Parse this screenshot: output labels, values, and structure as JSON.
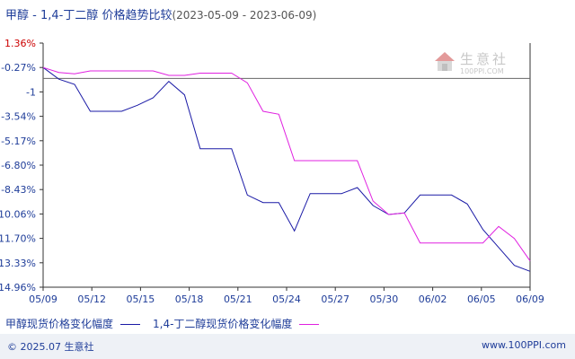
{
  "header": {
    "title": "甲醇 - 1,4-丁二醇 价格趋势比较",
    "date_range": "(2023-05-09 - 2023-06-09)"
  },
  "watermark": {
    "name": "生意社",
    "url": "100PPI.COM"
  },
  "footer": {
    "copyright": "© 2025.07 生意社",
    "site": "www.100PPI.com"
  },
  "chart_data": {
    "type": "line",
    "title": "甲醇 - 1,4-丁二醇 价格趋势比较",
    "subtitle": "(2023-05-09 - 2023-06-09)",
    "xlabel": "",
    "ylabel": "",
    "x_ticks": [
      "05/09",
      "05/12",
      "05/15",
      "05/18",
      "05/21",
      "05/24",
      "05/27",
      "05/30",
      "06/02",
      "06/05",
      "06/09"
    ],
    "y_ticks": [
      "1.36%",
      "-0.27%",
      "-1",
      "-3.54%",
      "-5.17%",
      "-6.80%",
      "-8.43%",
      "-10.06%",
      "-11.70%",
      "-13.33%",
      "-14.96%"
    ],
    "ylim": [
      -14.96,
      1.36
    ],
    "xlim": [
      0,
      31
    ],
    "reference_line": -1,
    "grid": false,
    "legend_position": "bottom",
    "series": [
      {
        "name": "甲醇现货价格变化幅度",
        "color": "#1a1aa6",
        "x": [
          0,
          1,
          2,
          3,
          4,
          5,
          6,
          7,
          8,
          9,
          10,
          11,
          12,
          13,
          14,
          15,
          16,
          17,
          18,
          19,
          20,
          21,
          22,
          23,
          24,
          25,
          26,
          27,
          28,
          29,
          30,
          31
        ],
        "y": [
          -0.27,
          -1.05,
          -1.4,
          -3.2,
          -3.2,
          -3.2,
          -2.8,
          -2.3,
          -1.2,
          -2.1,
          -5.7,
          -5.7,
          -5.7,
          -8.8,
          -9.3,
          -9.3,
          -11.2,
          -8.7,
          -8.7,
          -8.7,
          -8.3,
          -9.5,
          -10.1,
          -10.0,
          -8.8,
          -8.8,
          -8.8,
          -9.4,
          -11.1,
          -12.3,
          -13.5,
          -13.9
        ]
      },
      {
        "name": "1,4-丁二醇现货价格变化幅度",
        "color": "#e020e0",
        "x": [
          0,
          1,
          2,
          3,
          4,
          5,
          6,
          7,
          8,
          9,
          10,
          11,
          12,
          13,
          14,
          15,
          16,
          17,
          18,
          19,
          20,
          21,
          22,
          23,
          24,
          25,
          26,
          27,
          28,
          29,
          30,
          31
        ],
        "y": [
          -0.27,
          -0.6,
          -0.7,
          -0.5,
          -0.5,
          -0.5,
          -0.5,
          -0.5,
          -0.8,
          -0.8,
          -0.65,
          -0.65,
          -0.65,
          -1.3,
          -3.2,
          -3.4,
          -6.5,
          -6.5,
          -6.5,
          -6.5,
          -6.5,
          -9.2,
          -10.1,
          -10.0,
          -12.0,
          -12.0,
          -12.0,
          -12.0,
          -12.0,
          -10.9,
          -11.7,
          -13.2
        ]
      }
    ]
  }
}
